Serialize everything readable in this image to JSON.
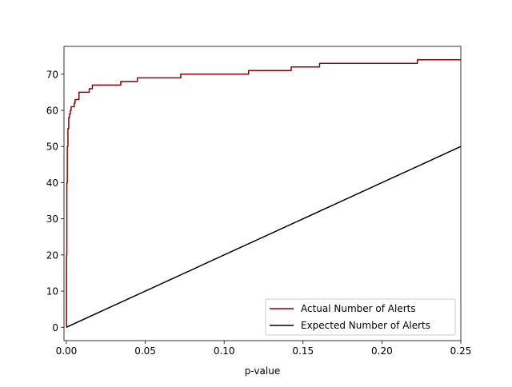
{
  "chart_data": {
    "type": "line",
    "title": "",
    "xlabel": "p-value",
    "ylabel": "",
    "xlim": [
      -0.0015,
      0.25
    ],
    "ylim": [
      -3.7,
      77.7
    ],
    "xticks": [
      0.0,
      0.05,
      0.1,
      0.15,
      0.2,
      0.25
    ],
    "xtick_labels": [
      "0.00",
      "0.05",
      "0.10",
      "0.15",
      "0.20",
      "0.25"
    ],
    "yticks": [
      0,
      10,
      20,
      30,
      40,
      50,
      60,
      70
    ],
    "ytick_labels": [
      "0",
      "10",
      "20",
      "30",
      "40",
      "50",
      "60",
      "70"
    ],
    "grid": false,
    "legend_position": "lower-right",
    "series": [
      {
        "name": "Actual Number of Alerts",
        "color": "#8b0000",
        "step": true,
        "x": [
          0.0,
          0.0001,
          0.0003,
          0.0006,
          0.001,
          0.0015,
          0.002,
          0.0025,
          0.003,
          0.0035,
          0.004,
          0.005,
          0.0055,
          0.007,
          0.008,
          0.0095,
          0.013,
          0.0145,
          0.016,
          0.0165,
          0.034,
          0.0345,
          0.0445,
          0.045,
          0.072,
          0.0725,
          0.115,
          0.1155,
          0.142,
          0.1425,
          0.16,
          0.1605,
          0.222,
          0.2225,
          0.25
        ],
        "y": [
          0,
          20,
          40,
          50,
          55,
          58,
          59,
          60,
          61,
          61,
          61,
          62,
          63,
          63,
          65,
          65,
          65,
          66,
          66,
          67,
          67,
          68,
          68,
          69,
          69,
          70,
          70,
          71,
          71,
          72,
          72,
          73,
          73,
          74,
          74
        ]
      },
      {
        "name": "Expected Number of Alerts",
        "color": "#000000",
        "step": false,
        "x": [
          0.0,
          0.25
        ],
        "y": [
          0,
          50
        ]
      }
    ]
  }
}
